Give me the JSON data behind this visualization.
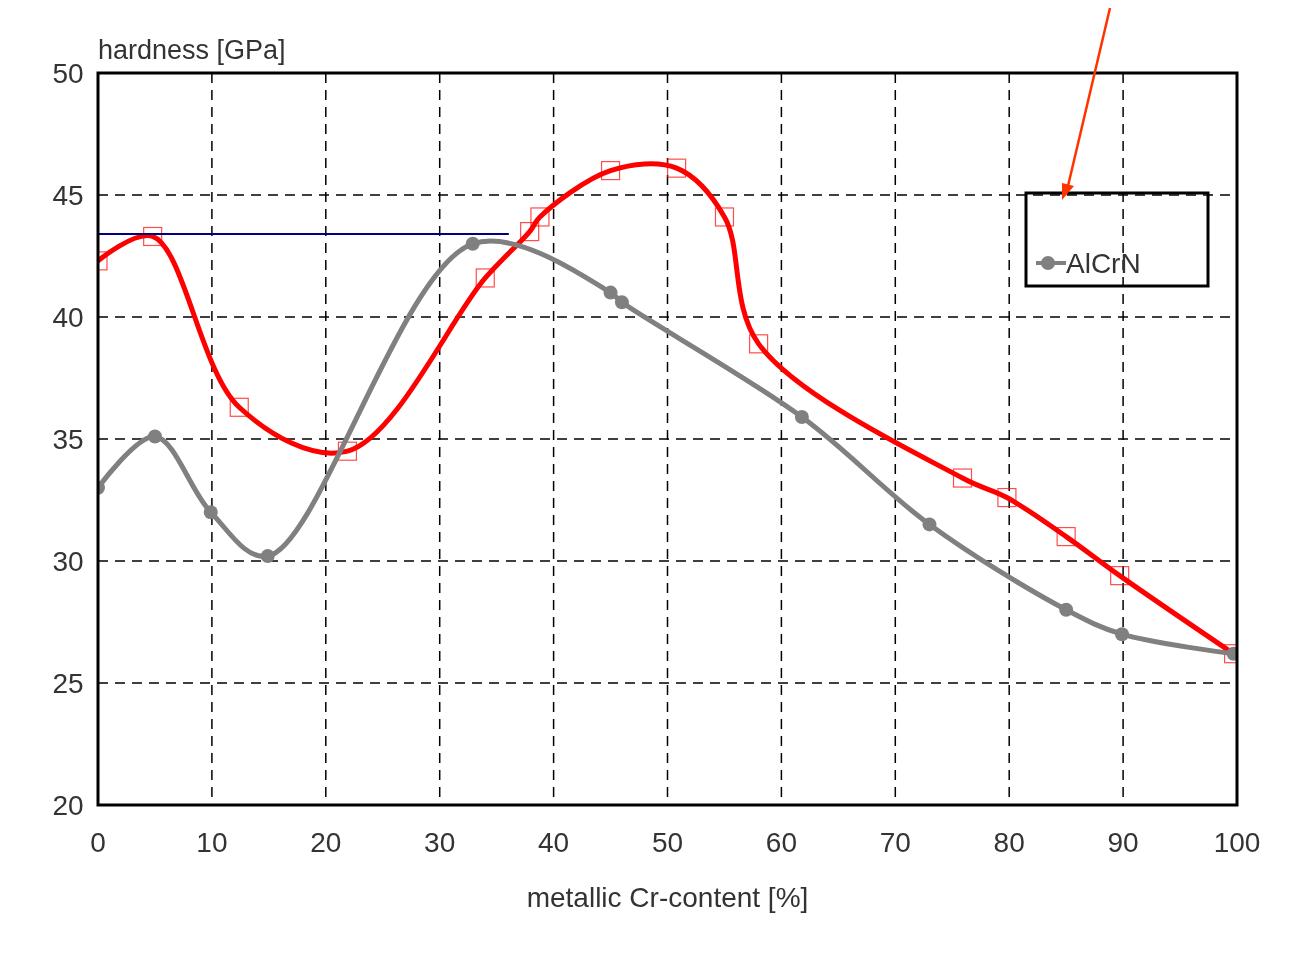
{
  "chart_data": {
    "type": "line",
    "xlabel": "metallic Cr-content [%]",
    "ylabel": "hardness [GPa]",
    "xlim": [
      0,
      100
    ],
    "ylim": [
      20,
      50
    ],
    "xticks": [
      0,
      10,
      20,
      30,
      40,
      50,
      60,
      70,
      80,
      90,
      100
    ],
    "yticks": [
      20,
      25,
      30,
      35,
      40,
      45,
      50
    ],
    "grid": true,
    "legend": "top right",
    "series": [
      {
        "color": "#ff0000",
        "marker": "square",
        "x": [
          0,
          4.8,
          12.4,
          21.9,
          34,
          37.9,
          38.8,
          45,
          50.8,
          55,
          58,
          75.9,
          79.8,
          85,
          89.7,
          99.7
        ],
        "values": [
          42.3,
          43.3,
          36.3,
          34.5,
          41.6,
          43.5,
          44.1,
          46.0,
          46.1,
          44.1,
          38.9,
          33.4,
          32.6,
          31.0,
          29.4,
          26.2
        ]
      },
      {
        "name": "AlCrN",
        "color": "#808080",
        "marker": "circle",
        "x": [
          0,
          5,
          9.9,
          14.9,
          32.9,
          45,
          46,
          61.8,
          73,
          85,
          89.9,
          99.7
        ],
        "values": [
          33.0,
          35.1,
          32.0,
          30.2,
          43.0,
          41.0,
          40.6,
          35.9,
          31.5,
          28.0,
          27.0,
          26.2
        ]
      },
      {
        "color": "#000080",
        "marker": "none",
        "x": [
          0,
          36
        ],
        "values": [
          43.4,
          43.4
        ]
      }
    ]
  }
}
